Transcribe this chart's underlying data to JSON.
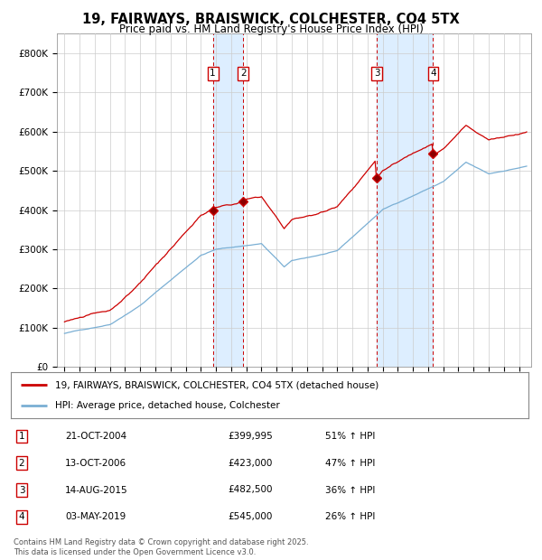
{
  "title1": "19, FAIRWAYS, BRAISWICK, COLCHESTER, CO4 5TX",
  "title2": "Price paid vs. HM Land Registry's House Price Index (HPI)",
  "red_label": "19, FAIRWAYS, BRAISWICK, COLCHESTER, CO4 5TX (detached house)",
  "blue_label": "HPI: Average price, detached house, Colchester",
  "footer": "Contains HM Land Registry data © Crown copyright and database right 2025.\nThis data is licensed under the Open Government Licence v3.0.",
  "transactions": [
    {
      "num": 1,
      "date": "21-OCT-2004",
      "price": "£399,995",
      "hpi": "51% ↑ HPI",
      "year": 2004.79
    },
    {
      "num": 2,
      "date": "13-OCT-2006",
      "price": "£423,000",
      "hpi": "47% ↑ HPI",
      "year": 2006.79
    },
    {
      "num": 3,
      "date": "14-AUG-2015",
      "price": "£482,500",
      "hpi": "36% ↑ HPI",
      "year": 2015.62
    },
    {
      "num": 4,
      "date": "03-MAY-2019",
      "price": "£545,000",
      "hpi": "26% ↑ HPI",
      "year": 2019.33
    }
  ],
  "sale_prices": [
    399995,
    423000,
    482500,
    545000
  ],
  "ylim": [
    0,
    850000
  ],
  "yticks": [
    0,
    100000,
    200000,
    300000,
    400000,
    500000,
    600000,
    700000,
    800000
  ],
  "ytick_labels": [
    "£0",
    "£100K",
    "£200K",
    "£300K",
    "£400K",
    "£500K",
    "£600K",
    "£700K",
    "£800K"
  ],
  "xlim_start": 1994.5,
  "xlim_end": 2025.8,
  "red_color": "#cc0000",
  "blue_color": "#7aafd4",
  "shade_color": "#ddeeff",
  "transaction_box_color": "#cc0000",
  "grid_color": "#cccccc",
  "background_color": "#ffffff"
}
